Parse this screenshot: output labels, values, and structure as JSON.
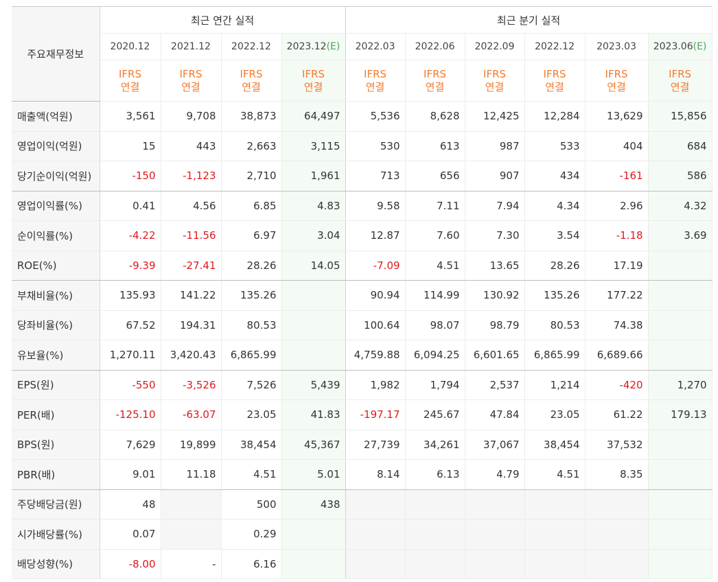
{
  "corner_label": "주요재무정보",
  "groups": {
    "annual": "최근 연간 실적",
    "quarterly": "최근 분기 실적"
  },
  "periods": [
    {
      "label": "2020.12",
      "est": ""
    },
    {
      "label": "2021.12",
      "est": ""
    },
    {
      "label": "2022.12",
      "est": ""
    },
    {
      "label": "2023.12",
      "est": "(E)"
    },
    {
      "label": "2022.03",
      "est": ""
    },
    {
      "label": "2022.06",
      "est": ""
    },
    {
      "label": "2022.09",
      "est": ""
    },
    {
      "label": "2022.12",
      "est": ""
    },
    {
      "label": "2023.03",
      "est": ""
    },
    {
      "label": "2023.06",
      "est": "(E)"
    }
  ],
  "ifrs_label": "IFRS",
  "consolidated_label": "연결",
  "rows": [
    {
      "label": "매출액(억원)",
      "values": [
        "3,561",
        "9,708",
        "38,873",
        "64,497",
        "5,536",
        "8,628",
        "12,425",
        "12,284",
        "13,629",
        "15,856"
      ]
    },
    {
      "label": "영업이익(억원)",
      "values": [
        "15",
        "443",
        "2,663",
        "3,115",
        "530",
        "613",
        "987",
        "533",
        "404",
        "684"
      ]
    },
    {
      "label": "당기순이익(억원)",
      "values": [
        "-150",
        "-1,123",
        "2,710",
        "1,961",
        "713",
        "656",
        "907",
        "434",
        "-161",
        "586"
      ]
    },
    {
      "label": "영업이익률(%)",
      "values": [
        "0.41",
        "4.56",
        "6.85",
        "4.83",
        "9.58",
        "7.11",
        "7.94",
        "4.34",
        "2.96",
        "4.32"
      ]
    },
    {
      "label": "순이익률(%)",
      "values": [
        "-4.22",
        "-11.56",
        "6.97",
        "3.04",
        "12.87",
        "7.60",
        "7.30",
        "3.54",
        "-1.18",
        "3.69"
      ]
    },
    {
      "label": "ROE(%)",
      "values": [
        "-9.39",
        "-27.41",
        "28.26",
        "14.05",
        "-7.09",
        "4.51",
        "13.65",
        "28.26",
        "17.19",
        ""
      ]
    },
    {
      "label": "부채비율(%)",
      "values": [
        "135.93",
        "141.22",
        "135.26",
        "",
        "90.94",
        "114.99",
        "130.92",
        "135.26",
        "177.22",
        ""
      ]
    },
    {
      "label": "당좌비율(%)",
      "values": [
        "67.52",
        "194.31",
        "80.53",
        "",
        "100.64",
        "98.07",
        "98.79",
        "80.53",
        "74.38",
        ""
      ]
    },
    {
      "label": "유보율(%)",
      "values": [
        "1,270.11",
        "3,420.43",
        "6,865.99",
        "",
        "4,759.88",
        "6,094.25",
        "6,601.65",
        "6,865.99",
        "6,689.66",
        ""
      ]
    },
    {
      "label": "EPS(원)",
      "values": [
        "-550",
        "-3,526",
        "7,526",
        "5,439",
        "1,982",
        "1,794",
        "2,537",
        "1,214",
        "-420",
        "1,270"
      ]
    },
    {
      "label": "PER(배)",
      "values": [
        "-125.10",
        "-63.07",
        "23.05",
        "41.83",
        "-197.17",
        "245.67",
        "47.84",
        "23.05",
        "61.22",
        "179.13"
      ]
    },
    {
      "label": "BPS(원)",
      "values": [
        "7,629",
        "19,899",
        "38,454",
        "45,367",
        "27,739",
        "34,261",
        "37,067",
        "38,454",
        "37,532",
        ""
      ]
    },
    {
      "label": "PBR(배)",
      "values": [
        "9.01",
        "11.18",
        "4.51",
        "5.01",
        "8.14",
        "6.13",
        "4.79",
        "4.51",
        "8.35",
        ""
      ]
    },
    {
      "label": "주당배당금(원)",
      "values": [
        "48",
        "",
        "500",
        "438",
        "",
        "",
        "",
        "",
        "",
        ""
      ]
    },
    {
      "label": "시가배당률(%)",
      "values": [
        "0.07",
        "",
        "0.29",
        "",
        "",
        "",
        "",
        "",
        "",
        ""
      ]
    },
    {
      "label": "배당성향(%)",
      "values": [
        "-8.00",
        "-",
        "6.16",
        "",
        "",
        "",
        "",
        "",
        "",
        ""
      ]
    }
  ],
  "colors": {
    "negative": "#e0171c",
    "ifrs": "#f47a2c",
    "estimate_bg": "#f4faf4",
    "label_bg": "#f6f6f6",
    "estimate_mark": "#4aa35a"
  }
}
